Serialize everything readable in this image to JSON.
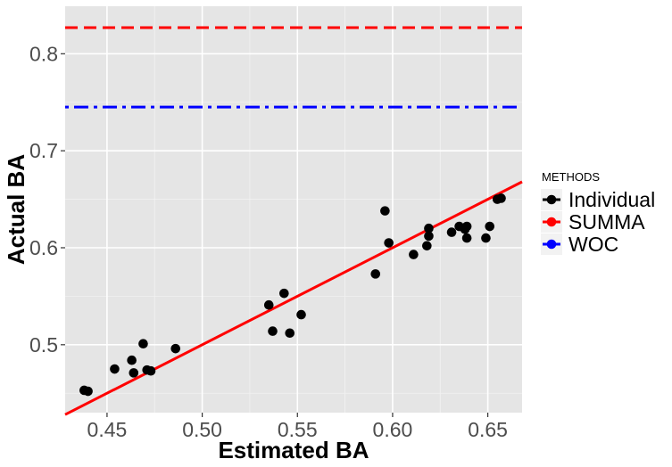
{
  "chart_data": {
    "type": "scatter",
    "title": "",
    "xlabel": "Estimated BA",
    "ylabel": "Actual BA",
    "xlim": [
      0.428,
      0.668
    ],
    "ylim": [
      0.43,
      0.849
    ],
    "x_ticks": [
      0.45,
      0.5,
      0.55,
      0.6,
      0.65
    ],
    "x_tick_labels": [
      "0.45",
      "0.50",
      "0.55",
      "0.60",
      "0.65"
    ],
    "y_ticks": [
      0.5,
      0.6,
      0.7,
      0.8
    ],
    "y_tick_labels": [
      "0.5",
      "0.6",
      "0.7",
      "0.8"
    ],
    "grid": true,
    "legend_position": "right",
    "legend": {
      "title": "METHODS",
      "entries": [
        {
          "label": "Individual",
          "color": "#000000"
        },
        {
          "label": "SUMMA",
          "color": "#ff0000"
        },
        {
          "label": "WOC",
          "color": "#0000ff"
        }
      ]
    },
    "series": [
      {
        "name": "Individual",
        "kind": "points",
        "color": "#000000",
        "points": [
          {
            "x": 0.438,
            "y": 0.453
          },
          {
            "x": 0.44,
            "y": 0.452
          },
          {
            "x": 0.454,
            "y": 0.475
          },
          {
            "x": 0.463,
            "y": 0.484
          },
          {
            "x": 0.464,
            "y": 0.471
          },
          {
            "x": 0.469,
            "y": 0.501
          },
          {
            "x": 0.471,
            "y": 0.474
          },
          {
            "x": 0.473,
            "y": 0.473
          },
          {
            "x": 0.486,
            "y": 0.496
          },
          {
            "x": 0.535,
            "y": 0.541
          },
          {
            "x": 0.537,
            "y": 0.514
          },
          {
            "x": 0.543,
            "y": 0.553
          },
          {
            "x": 0.546,
            "y": 0.512
          },
          {
            "x": 0.552,
            "y": 0.531
          },
          {
            "x": 0.591,
            "y": 0.573
          },
          {
            "x": 0.596,
            "y": 0.638
          },
          {
            "x": 0.598,
            "y": 0.605
          },
          {
            "x": 0.611,
            "y": 0.593
          },
          {
            "x": 0.618,
            "y": 0.602
          },
          {
            "x": 0.619,
            "y": 0.612
          },
          {
            "x": 0.619,
            "y": 0.62
          },
          {
            "x": 0.631,
            "y": 0.616
          },
          {
            "x": 0.635,
            "y": 0.622
          },
          {
            "x": 0.638,
            "y": 0.619
          },
          {
            "x": 0.639,
            "y": 0.622
          },
          {
            "x": 0.639,
            "y": 0.61
          },
          {
            "x": 0.649,
            "y": 0.61
          },
          {
            "x": 0.651,
            "y": 0.622
          },
          {
            "x": 0.655,
            "y": 0.65
          },
          {
            "x": 0.657,
            "y": 0.651
          }
        ]
      },
      {
        "name": "SUMMA",
        "kind": "hline",
        "color": "#ff0000",
        "y": 0.827,
        "dash": "dashed"
      },
      {
        "name": "WOC",
        "kind": "hline",
        "color": "#0000ff",
        "y": 0.745,
        "dash": "dotdash"
      },
      {
        "name": "fit",
        "kind": "abline",
        "color": "#ff0000",
        "x": [
          0.428,
          0.668
        ],
        "y": [
          0.428,
          0.668
        ]
      }
    ]
  }
}
